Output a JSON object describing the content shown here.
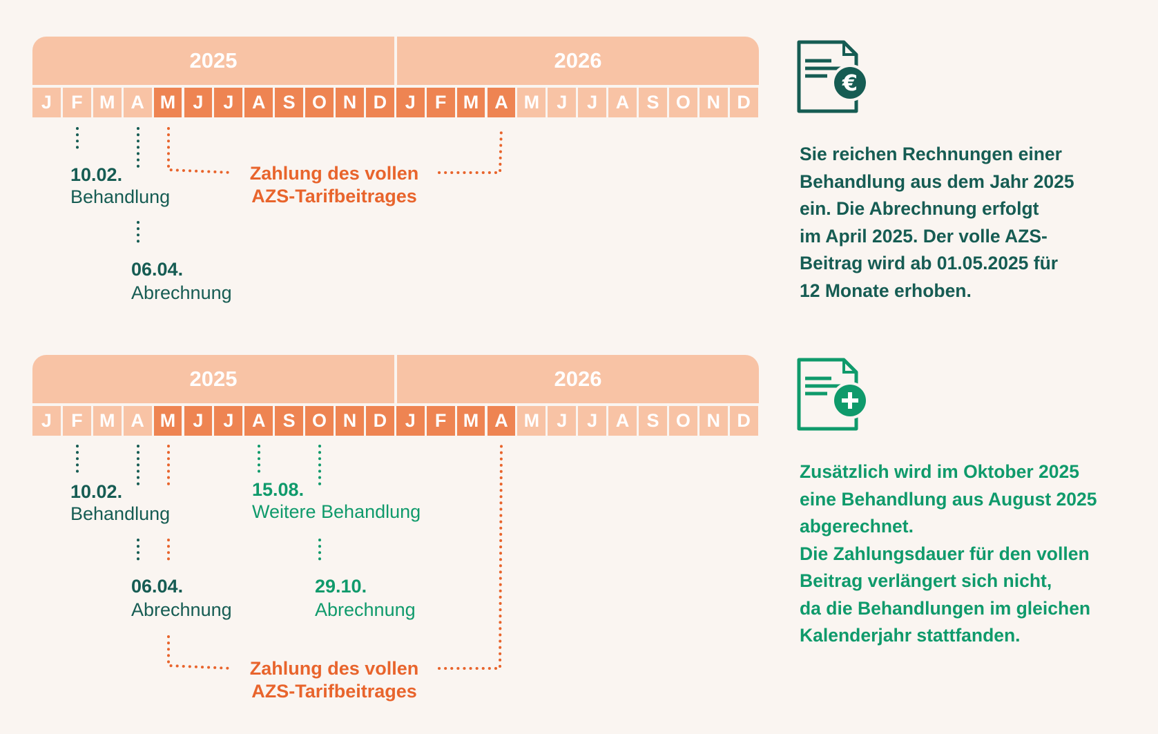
{
  "colors": {
    "light_month": "#f8c3a5",
    "highlight_month": "#ee8452",
    "teal": "#165c53",
    "green": "#0f9a6b",
    "orange": "#e8642c",
    "background": "#faf5f1"
  },
  "months": [
    "J",
    "F",
    "M",
    "A",
    "M",
    "J",
    "J",
    "A",
    "S",
    "O",
    "N",
    "D",
    "J",
    "F",
    "M",
    "A",
    "M",
    "J",
    "J",
    "A",
    "S",
    "O",
    "N",
    "D"
  ],
  "scenario1": {
    "year_left": "2025",
    "year_right": "2026",
    "highlight_range": [
      4,
      15
    ],
    "treatment_date": "10.02.",
    "treatment_label": "Behandlung",
    "billing_date": "06.04.",
    "billing_label": "Abrechnung",
    "payment_line1": "Zahlung des vollen",
    "payment_line2": "AZS-Tarifbeitrages",
    "icon": "invoice-euro-icon",
    "description": [
      "Sie reichen Rechnungen einer",
      "Behandlung aus dem Jahr 2025",
      "ein. Die Abrechnung erfolgt",
      "im April 2025. Der volle AZS-",
      "Beitrag wird ab 01.05.2025 für",
      "12 Monate erhoben."
    ]
  },
  "scenario2": {
    "year_left": "2025",
    "year_right": "2026",
    "highlight_range": [
      4,
      15
    ],
    "treatment_date": "10.02.",
    "treatment_label": "Behandlung",
    "billing_date": "06.04.",
    "billing_label": "Abrechnung",
    "treatment2_date": "15.08.",
    "treatment2_label": "Weitere Behandlung",
    "billing2_date": "29.10.",
    "billing2_label": "Abrechnung",
    "payment_line1": "Zahlung des vollen",
    "payment_line2": "AZS-Tarifbeitrages",
    "icon": "invoice-plus-icon",
    "description": [
      "Zusätzlich wird im Oktober 2025",
      "eine Behandlung aus August 2025",
      "abgerechnet.",
      "Die Zahlungsdauer für den vollen",
      "Beitrag verlängert sich nicht,",
      "da die Behandlungen im gleichen",
      "Kalenderjahr stattfanden."
    ]
  }
}
